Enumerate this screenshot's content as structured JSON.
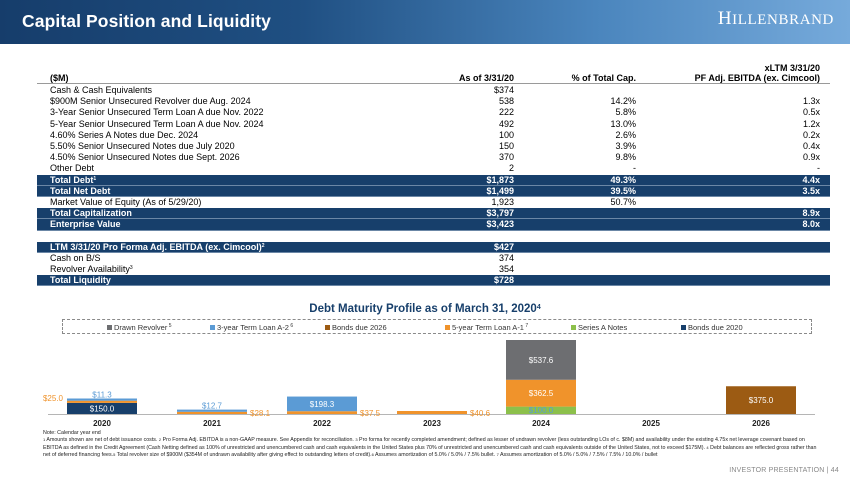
{
  "header": {
    "title": "Capital Position and Liquidity",
    "brand": "Hillenbrand"
  },
  "table": {
    "units_label": "($M)",
    "col1_header": "As of 3/31/20",
    "col2_header": "% of Total Cap.",
    "col3_header_line1": "xLTM 3/31/20",
    "col3_header_line2": "PF Adj. EBITDA (ex. Cimcool)",
    "rows": [
      {
        "label": "Cash & Cash Equivalents",
        "sup": "",
        "as_of": "$374",
        "pct": "",
        "mult": "",
        "highlight": false
      },
      {
        "label": "$900M Senior Unsecured Revolver due Aug. 2024",
        "sup": "",
        "as_of": "538",
        "pct": "14.2%",
        "mult": "1.3x",
        "highlight": false
      },
      {
        "label": "3-Year Senior Unsecured Term Loan A due Nov. 2022",
        "sup": "",
        "as_of": "222",
        "pct": "5.8%",
        "mult": "0.5x",
        "highlight": false
      },
      {
        "label": "5-Year Senior Unsecured Term Loan A due Nov. 2024",
        "sup": "",
        "as_of": "492",
        "pct": "13.0%",
        "mult": "1.2x",
        "highlight": false
      },
      {
        "label": "4.60% Series A Notes due Dec. 2024",
        "sup": "",
        "as_of": "100",
        "pct": "2.6%",
        "mult": "0.2x",
        "highlight": false
      },
      {
        "label": "5.50% Senior Unsecured Notes due July 2020",
        "sup": "",
        "as_of": "150",
        "pct": "3.9%",
        "mult": "0.4x",
        "highlight": false
      },
      {
        "label": "4.50% Senior Unsecured Notes due Sept. 2026",
        "sup": "",
        "as_of": "370",
        "pct": "9.8%",
        "mult": "0.9x",
        "highlight": false
      },
      {
        "label": "Other Debt",
        "sup": "",
        "as_of": "2",
        "pct": "-",
        "mult": "-",
        "highlight": false
      },
      {
        "label": "Total Debt",
        "sup": "1",
        "as_of": "$1,873",
        "pct": "49.3%",
        "mult": "4.4x",
        "highlight": true
      },
      {
        "label": "Total Net Debt",
        "sup": "",
        "as_of": "$1,499",
        "pct": "39.5%",
        "mult": "3.5x",
        "highlight": true
      },
      {
        "label": "Market Value of Equity (As of 5/29/20)",
        "sup": "",
        "as_of": "1,923",
        "pct": "50.7%",
        "mult": "",
        "highlight": false
      },
      {
        "label": "Total Capitalization",
        "sup": "",
        "as_of": "$3,797",
        "pct": "",
        "mult": "8.9x",
        "highlight": true
      },
      {
        "label": "Enterprise Value",
        "sup": "",
        "as_of": "$3,423",
        "pct": "",
        "mult": "8.0x",
        "highlight": true
      }
    ],
    "liquidity_rows": [
      {
        "label": "LTM 3/31/20 Pro Forma Adj. EBITDA (ex. Cimcool)",
        "sup": "2",
        "as_of": "$427",
        "highlight": true
      },
      {
        "label": "Cash on B/S",
        "sup": "",
        "as_of": "374",
        "highlight": false
      },
      {
        "label": "Revolver Availability",
        "sup": "3",
        "as_of": "354",
        "highlight": false
      },
      {
        "label": "Total Liquidity",
        "sup": "",
        "as_of": "$728",
        "highlight": true
      }
    ]
  },
  "chart_data": {
    "type": "bar",
    "stacked": true,
    "title": "Debt Maturity Profile as of March 31, 2020",
    "title_sup": "4",
    "categories": [
      "2020",
      "2021",
      "2022",
      "2023",
      "2024",
      "2025",
      "2026"
    ],
    "legend_position": "top",
    "series": [
      {
        "name": "Drawn Revolver",
        "sup": "5",
        "color": "#6d6e71",
        "values": [
          0,
          0,
          0,
          0,
          537.6,
          0,
          0
        ]
      },
      {
        "name": "3-year Term Loan A-2",
        "sup": "6",
        "color": "#5b9bd5",
        "values": [
          11.3,
          12.7,
          198.3,
          0,
          0,
          0,
          0
        ]
      },
      {
        "name": "Bonds due 2026",
        "sup": "",
        "color": "#9c5b13",
        "values": [
          0,
          0,
          0,
          0,
          0,
          0,
          375.0
        ]
      },
      {
        "name": "5-year Term Loan A-1",
        "sup": "7",
        "color": "#f0932b",
        "values": [
          25.0,
          28.1,
          37.5,
          40.6,
          362.5,
          0,
          0
        ]
      },
      {
        "name": "Series A Notes",
        "sup": "",
        "color": "#8cc04b",
        "values": [
          0,
          0,
          0,
          0,
          100.0,
          0,
          0
        ]
      },
      {
        "name": "Bonds due 2020",
        "sup": "",
        "color": "#173f6b",
        "values": [
          150.0,
          0,
          0,
          0,
          0,
          0,
          0
        ]
      }
    ],
    "data_labels": [
      {
        "category": "2020",
        "series": "Bonds due 2020",
        "text": "$150.0"
      },
      {
        "category": "2020",
        "series": "5-year Term Loan A-1",
        "text": "$25.0"
      },
      {
        "category": "2020",
        "series": "3-year Term Loan A-2",
        "text": "$11.3"
      },
      {
        "category": "2021",
        "series": "3-year Term Loan A-2",
        "text": "$12.7"
      },
      {
        "category": "2021",
        "series": "5-year Term Loan A-1",
        "text": "$28.1"
      },
      {
        "category": "2022",
        "series": "3-year Term Loan A-2",
        "text": "$198.3"
      },
      {
        "category": "2022",
        "series": "5-year Term Loan A-1",
        "text": "$37.5"
      },
      {
        "category": "2023",
        "series": "5-year Term Loan A-1",
        "text": "$40.6"
      },
      {
        "category": "2024",
        "series": "Series A Notes",
        "text": "$100.0"
      },
      {
        "category": "2024",
        "series": "5-year Term Loan A-1",
        "text": "$362.5"
      },
      {
        "category": "2024",
        "series": "Drawn Revolver",
        "text": "$537.6"
      },
      {
        "category": "2026",
        "series": "Bonds due 2026",
        "text": "$375.0"
      }
    ],
    "xlabel": "",
    "ylabel": "",
    "ylim": [
      0,
      1000.1
    ],
    "grid": false
  },
  "footnotes": {
    "note": "Note: Calendar year end",
    "items": [
      {
        "sup": "1",
        "text": "Amounts shown are net of debt issuance costs. "
      },
      {
        "sup": "2",
        "text": "Pro Forma Adj. EBITDA is a non-GAAP measure. See Appendix for reconciliation. "
      },
      {
        "sup": "3",
        "text": "Pro forma for recently completed amendment; defined as lesser of undrawn revolver (less outstanding LOs of c. $8M) and availability under the existing 4.75x net leverage covenant based on EBITDA as defined in the Credit Agreement (Cash Netting defined as 100% of unrestricted and unencumbered cash and cash equivalents in the United States plus 70% of unrestricted and unencumbered cash and cash equivalents outside of the United States, not to exceed $175M). "
      },
      {
        "sup": "4",
        "text": "Debt balances are reflected gross rather than net of deferred financing fees."
      },
      {
        "sup": "5",
        "text": "Total revolver size of $900M ($354M of undrawn availability after giving effect to outstanding letters of credit)."
      },
      {
        "sup": "6",
        "text": "Assumes amortization of 5.0% / 5.0% / 7.5% bullet. "
      },
      {
        "sup": "7",
        "text": "Assumes amortization of 5.0% / 5.0% / 7.5% / 7.5% / 10.0% / bullet"
      }
    ]
  },
  "footer": {
    "text": "INVESTOR PRESENTATION | 44"
  }
}
